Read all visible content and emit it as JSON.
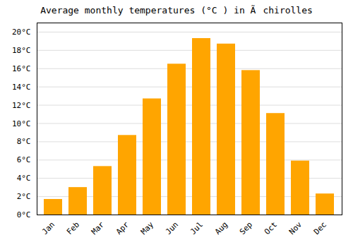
{
  "chart_data": {
    "type": "bar",
    "title": "Average monthly temperatures (°C ) in Ãchirolles",
    "categories": [
      "Jan",
      "Feb",
      "Mar",
      "Apr",
      "May",
      "Jun",
      "Jul",
      "Aug",
      "Sep",
      "Oct",
      "Nov",
      "Dec"
    ],
    "values": [
      1.7,
      3.0,
      5.3,
      8.7,
      12.7,
      16.5,
      19.3,
      18.7,
      15.8,
      11.1,
      5.9,
      2.3
    ],
    "color": "#FFA500",
    "ylim": [
      0,
      21
    ],
    "yticks": [
      {
        "value": 0,
        "label": "0°C"
      },
      {
        "value": 2,
        "label": "2°C"
      },
      {
        "value": 4,
        "label": "4°C"
      },
      {
        "value": 6,
        "label": "6°C"
      },
      {
        "value": 8,
        "label": "8°C"
      },
      {
        "value": 10,
        "label": "10°C"
      },
      {
        "value": 12,
        "label": "12°C"
      },
      {
        "value": 14,
        "label": "14°C"
      },
      {
        "value": 16,
        "label": "16°C"
      },
      {
        "value": 18,
        "label": "18°C"
      },
      {
        "value": 20,
        "label": "20°C"
      }
    ],
    "grid": true
  }
}
